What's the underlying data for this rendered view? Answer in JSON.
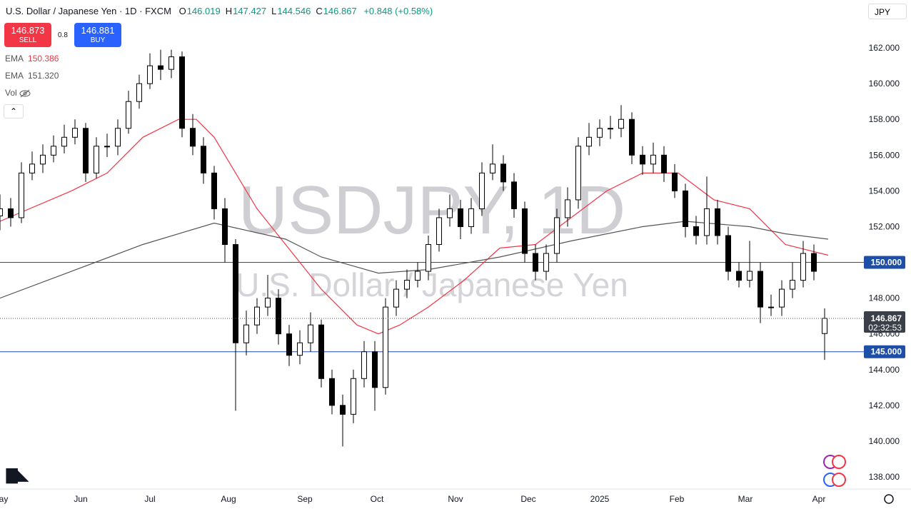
{
  "header": {
    "title": "U.S. Dollar / Japanese Yen · 1D · FXCM",
    "ohlc": [
      {
        "label": "O",
        "value": 146.019
      },
      {
        "label": "H",
        "value": 147.427
      },
      {
        "label": "L",
        "value": 144.546
      },
      {
        "label": "C",
        "value": 146.867
      }
    ],
    "change": "+0.848 (+0.58%)",
    "sell": {
      "price": "146.873",
      "label": "SELL"
    },
    "spread": "0.8",
    "buy": {
      "price": "146.881",
      "label": "BUY"
    },
    "volume_label": "Vol",
    "currency": "JPY"
  },
  "chart_data": {
    "type": "candlestick",
    "watermark": "USDJPY, 1D",
    "watermark_subtitle": "U.S. Dollar / Japanese Yen",
    "xlim": [
      0,
      241
    ],
    "xticks": [
      {
        "value": 0,
        "label": "May"
      },
      {
        "value": 22.6,
        "label": "Jun"
      },
      {
        "value": 42,
        "label": "Jul"
      },
      {
        "value": 64,
        "label": "Aug"
      },
      {
        "value": 85.4,
        "label": "Sep"
      },
      {
        "value": 105.6,
        "label": "Oct"
      },
      {
        "value": 127.6,
        "label": "Nov"
      },
      {
        "value": 148,
        "label": "Dec"
      },
      {
        "value": 168,
        "label": "2025"
      },
      {
        "value": 189.6,
        "label": "Feb"
      },
      {
        "value": 208.8,
        "label": "Mar"
      },
      {
        "value": 229.4,
        "label": "Apr"
      }
    ],
    "ylim": [
      137.32,
      164.68
    ],
    "yticks": [
      {
        "value": 138,
        "label": "138.000"
      },
      {
        "value": 140,
        "label": "140.000"
      },
      {
        "value": 142,
        "label": "142.000"
      },
      {
        "value": 144,
        "label": "144.000"
      },
      {
        "value": 146,
        "label": "146.000"
      },
      {
        "value": 148,
        "label": "148.000"
      },
      {
        "value": 150,
        "label": "150.000"
      },
      {
        "value": 152,
        "label": "152.000"
      },
      {
        "value": 154,
        "label": "154.000"
      },
      {
        "value": 156,
        "label": "156.000"
      },
      {
        "value": 158,
        "label": "158.000"
      },
      {
        "value": 160,
        "label": "160.000"
      },
      {
        "value": 162,
        "label": "162.000"
      }
    ],
    "up_color": "#ffffff",
    "down_color": "#000000",
    "candles": {
      "x": [
        0,
        3,
        6,
        9,
        12,
        15,
        18,
        21,
        24,
        27,
        30,
        33,
        36,
        39,
        42,
        45,
        48,
        51,
        54,
        57,
        60,
        63,
        66,
        69,
        72,
        75,
        78,
        81,
        84,
        87,
        90,
        93,
        96,
        99,
        102,
        105,
        108,
        111,
        114,
        117,
        120,
        123,
        126,
        129,
        132,
        135,
        138,
        141,
        144,
        147,
        150,
        153,
        156,
        159,
        162,
        165,
        168,
        171,
        174,
        177,
        180,
        183,
        186,
        189,
        192,
        195,
        198,
        201,
        204,
        207,
        210,
        213,
        216,
        219,
        222,
        225,
        228,
        231
      ],
      "open": [
        152.6,
        153,
        152.5,
        155,
        155.5,
        156,
        156.5,
        157,
        157.5,
        155,
        156.5,
        156.5,
        157.5,
        159,
        160,
        161,
        160.8,
        161.5,
        157.5,
        156.5,
        155,
        153,
        151,
        145.5,
        146.5,
        147.5,
        148,
        146,
        144.8,
        145.5,
        146.5,
        143.5,
        142,
        141.5,
        143.5,
        145,
        143,
        147.5,
        148.5,
        149,
        149.5,
        151,
        152.5,
        153,
        152,
        153,
        155,
        155.5,
        154.5,
        153,
        150.5,
        149.5,
        150.5,
        152.5,
        153.5,
        156.5,
        157,
        157.5,
        157.5,
        158,
        156,
        155.5,
        156,
        155,
        154,
        152,
        151.5,
        153,
        151.5,
        149.5,
        149,
        149.5,
        147.5,
        147.5,
        148.5,
        149,
        150.5,
        146.019
      ],
      "high": [
        153.8,
        153.6,
        155.6,
        156.2,
        156.6,
        157.1,
        157.7,
        158,
        157.8,
        157,
        157.2,
        158,
        159.6,
        160.5,
        161.7,
        161.9,
        161.9,
        161.8,
        158.3,
        157,
        155.4,
        153.6,
        151.3,
        147.3,
        148,
        149.3,
        148.5,
        146.5,
        146.2,
        147.2,
        146.8,
        144,
        142.6,
        144,
        145.6,
        145.6,
        148,
        149,
        149.6,
        150,
        151.5,
        153,
        153.8,
        153.5,
        153.6,
        155.6,
        156.6,
        156,
        155,
        153.4,
        151,
        151,
        153,
        154.2,
        157,
        157.8,
        158,
        158.2,
        158.8,
        158.4,
        156.5,
        156.7,
        156.5,
        155.5,
        154.4,
        152.6,
        154.8,
        153.5,
        152,
        150,
        151.2,
        150,
        148.2,
        149,
        150,
        151.2,
        151,
        147.427
      ],
      "low": [
        151.8,
        152,
        152.2,
        154.6,
        155,
        155.6,
        156.1,
        156.6,
        154.5,
        154.7,
        155.9,
        156,
        157.2,
        158.6,
        159.7,
        160.2,
        160.3,
        157,
        156,
        154.4,
        152.4,
        150,
        141.7,
        144.8,
        146,
        147,
        145.4,
        144.2,
        144.3,
        145,
        143,
        141.5,
        139.7,
        141,
        143,
        141.7,
        142.6,
        147,
        148,
        148.6,
        149,
        150.6,
        152,
        151.3,
        151.6,
        152.6,
        154.6,
        154,
        152.5,
        150,
        149,
        149,
        150,
        152,
        153,
        156,
        156.5,
        156.9,
        157,
        155.5,
        154.9,
        155,
        154.5,
        153.6,
        151.4,
        151,
        151,
        151,
        149,
        148.6,
        148.6,
        146.6,
        147,
        147,
        148,
        148.6,
        149,
        144.546
      ],
      "close": [
        153,
        152.5,
        155,
        155.5,
        156,
        156.5,
        157,
        157.5,
        155,
        156.5,
        156.5,
        157.5,
        159,
        160,
        161,
        160.8,
        161.5,
        157.5,
        156.5,
        155,
        153,
        151,
        145.5,
        146.5,
        147.5,
        148,
        146,
        144.8,
        145.5,
        146.5,
        143.5,
        142,
        141.5,
        143.5,
        145,
        143,
        147.5,
        148.5,
        149,
        149.5,
        151,
        152.5,
        153,
        152,
        153,
        155,
        155.5,
        154.5,
        153,
        150.5,
        149.5,
        150.5,
        152.5,
        153.5,
        156.5,
        157,
        157.5,
        157.5,
        158,
        156,
        155.5,
        156,
        155,
        154,
        152,
        151.5,
        153,
        151.5,
        149.5,
        149,
        149.5,
        147.5,
        147.5,
        148.5,
        149,
        150.5,
        149.5,
        146.867
      ]
    },
    "series": [
      {
        "name": "EMA",
        "last": "150.386",
        "color": "#f23645",
        "x": [
          0,
          20,
          30,
          40,
          50,
          55,
          60,
          66,
          72,
          80,
          90,
          100,
          106,
          112,
          120,
          130,
          140,
          150,
          160,
          170,
          180,
          190,
          200,
          210,
          220,
          232
        ],
        "values": [
          152.3,
          154,
          155,
          157,
          158,
          158,
          157,
          155,
          153,
          151,
          148.5,
          146.5,
          146,
          146.5,
          147.5,
          149,
          150.8,
          151,
          152.5,
          154,
          155,
          155,
          153.5,
          153,
          151,
          150.4
        ]
      },
      {
        "name": "EMA",
        "last": "151.320",
        "color": "#555555",
        "x": [
          0,
          20,
          40,
          60,
          80,
          90,
          106,
          120,
          140,
          160,
          180,
          192,
          210,
          220,
          232
        ],
        "values": [
          148,
          149.5,
          151,
          152.2,
          151.3,
          150.3,
          149.4,
          149.6,
          150.3,
          151.2,
          152,
          152.3,
          152,
          151.6,
          151.3
        ]
      }
    ],
    "levels": [
      {
        "value": 150,
        "label": "150.000"
      },
      {
        "value": 145,
        "label": "145.000"
      }
    ],
    "last_price": {
      "value": 146.867,
      "label": "146.867",
      "countdown": "02:32:53"
    }
  }
}
